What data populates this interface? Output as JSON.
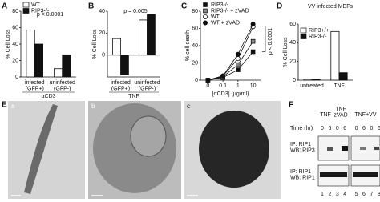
{
  "chart_data": [
    {
      "type": "bar",
      "panel": "A",
      "ylabel": "% Cell Loss",
      "xlabel": "αCD3",
      "categories": [
        "infected\n(GFP+)",
        "uninfected\n(GFP-)"
      ],
      "series": [
        {
          "name": "WT",
          "color": "#ffffff",
          "values": [
            57,
            10
          ]
        },
        {
          "name": "RIP3-/-",
          "color": "#111111",
          "values": [
            40,
            27
          ]
        }
      ],
      "ylim": [
        0,
        80
      ],
      "yticks": [
        0,
        20,
        40,
        60,
        80
      ],
      "annotation": "p < 0.0001",
      "legend": "upper left"
    },
    {
      "type": "bar",
      "panel": "B",
      "ylabel": "% Cell Loss",
      "xlabel": "TNF",
      "categories": [
        "infected\n(GFP+)",
        "uninfected\n(GFP-)"
      ],
      "series": [
        {
          "color": "#ffffff",
          "values": [
            15,
            32
          ]
        },
        {
          "color": "#111111",
          "values": [
            -18,
            37
          ]
        }
      ],
      "ylim": [
        -20,
        40
      ],
      "yticks": [
        0,
        20,
        40
      ],
      "annotation": "p = 0.005"
    },
    {
      "type": "line",
      "panel": "C",
      "ylabel": "% cell death",
      "xlabel": "[αCD3] (μg/ml)",
      "categories": [
        "0",
        "0.1",
        "1",
        "10"
      ],
      "series": [
        {
          "name": "RIP3-/-",
          "color": "#111111",
          "marker": "square",
          "values": [
            0,
            3,
            12,
            33
          ]
        },
        {
          "name": "RIP3-/- + zVAD",
          "color": "#888888",
          "marker": "square",
          "values": [
            0,
            4,
            18,
            45
          ]
        },
        {
          "name": "WT",
          "color": "#ffffff",
          "marker": "circle",
          "values": [
            0,
            5,
            25,
            62
          ]
        },
        {
          "name": "WT + zVAD",
          "color": "#111111",
          "marker": "circle",
          "values": [
            0,
            5,
            30,
            65
          ]
        }
      ],
      "ylim": [
        0,
        80
      ],
      "yticks": [
        0,
        20,
        40,
        60,
        80
      ],
      "annotation": "p < 0.0001",
      "legend": "upper left"
    },
    {
      "type": "bar",
      "panel": "D",
      "title": "VV-infected MEFs",
      "ylabel": "% Cell Loss",
      "categories": [
        "untreated",
        "TNF"
      ],
      "series": [
        {
          "name": "RIP3+/+",
          "color": "#ffffff",
          "values": [
            1,
            52
          ]
        },
        {
          "name": "RIP3-/-",
          "color": "#111111",
          "values": [
            1,
            8
          ]
        }
      ],
      "ylim": [
        0,
        60
      ],
      "yticks": [
        0,
        20,
        40,
        60
      ],
      "legend": "upper left"
    }
  ],
  "panel_E": {
    "label": "E",
    "images": [
      "a",
      "b",
      "c"
    ]
  },
  "panel_F": {
    "label": "F",
    "groups": [
      "TNF",
      "TNF\nzVAD",
      "TNF+VV"
    ],
    "time_label": "Time (hr)",
    "times": [
      "0",
      "6",
      "0",
      "6",
      "0",
      "6",
      "0",
      "6"
    ],
    "rows": [
      "IP: RIP1\nWB: RIP3",
      "IP: RIP1\nWB: RIP1"
    ],
    "lanes": [
      "1",
      "2",
      "3",
      "4",
      "5",
      "6",
      "7",
      "8"
    ]
  }
}
